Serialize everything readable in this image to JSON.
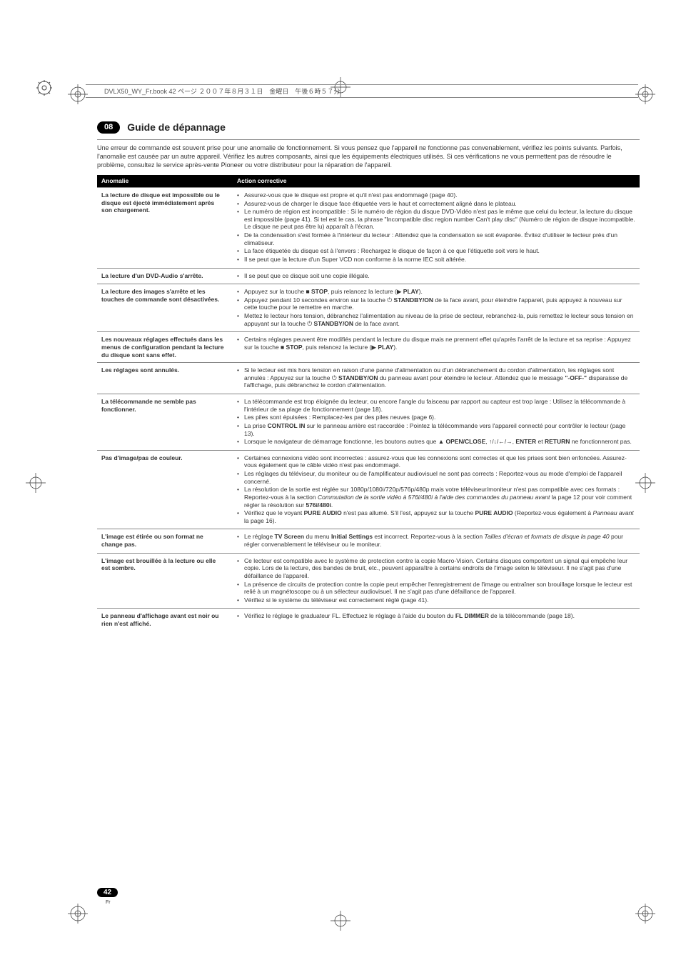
{
  "meta": {
    "header_strip": "DVLX50_WY_Fr.book  42 ページ  ２００７年８月３１日　金曜日　午後６時５７分"
  },
  "chapter": {
    "number": "08",
    "title": "Guide de dépannage"
  },
  "intro": "Une erreur de commande est souvent prise pour une anomalie de fonctionnement. Si vous pensez que l'appareil ne fonctionne pas convenablement, vérifiez les points suivants. Parfois, l'anomalie est causée par un autre appareil. Vérifiez les autres composants, ainsi que les équipements électriques utilisés. Si ces vérifications ne vous permettent pas de résoudre le problème, consultez le service après-vente Pioneer ou votre distributeur pour la réparation de l'appareil.",
  "table": {
    "head": {
      "anomalie": "Anomalie",
      "action": "Action corrective"
    },
    "rows": [
      {
        "anom": "La lecture de disque est impossible ou le disque est éjecté immédiatement après son chargement.",
        "items": [
          "Assurez-vous que le disque est propre et qu'il n'est pas endommagé (page 40).",
          "Assurez-vous de charger le disque face étiquetée vers le haut et correctement aligné dans le plateau.",
          "Le numéro de région est incompatible : Si le numéro de région du disque DVD-Vidéo n'est pas le même que celui du lecteur, la lecture du disque est impossible (page 41). Si tel est le cas, la phrase \"Incompatible disc region number Can't play disc\" (Numéro de région de disque incompatible. Le disque ne peut pas être lu) apparaît à l'écran.",
          "De la condensation s'est formée à l'intérieur du lecteur : Attendez que la condensation se soit évaporée. Évitez d'utiliser le lecteur près d'un climatiseur.",
          "La face étiquetée du disque est à l'envers : Rechargez le disque de façon à ce que l'étiquette soit vers le haut.",
          "Il se peut que la lecture d'un Super VCD non conforme à la norme IEC soit altérée."
        ]
      },
      {
        "anom": "La lecture d'un DVD-Audio s'arrête.",
        "items": [
          "Il se peut que ce disque soit une copie illégale."
        ]
      },
      {
        "anom": "La lecture des images s'arrête et les touches de commande sont désactivées.",
        "items": [
          "Appuyez sur la touche <span class='sym'>■</span> <span class='b'>STOP</span>, puis relancez la lecture (<span class='sym'>▶</span> <span class='b'>PLAY</span>).",
          "Appuyez pendant 10 secondes environ sur la touche <span class='sym'>⏻</span> <span class='b'>STANDBY/ON</span> de la face avant, pour éteindre l'appareil, puis appuyez à nouveau sur cette touche pour le remettre en marche.",
          "Mettez le lecteur hors tension, débranchez l'alimentation au niveau de la prise de secteur, rebranchez-la, puis remettez le lecteur sous tension en appuyant sur la touche <span class='sym'>⏻</span> <span class='b'>STANDBY/ON</span> de la face avant."
        ]
      },
      {
        "anom": "Les nouveaux réglages effectués dans les menus de configuration pendant la lecture du disque sont sans effet.",
        "items": [
          "Certains réglages peuvent être modifiés pendant la lecture du disque mais ne prennent effet qu'après l'arrêt de la lecture et sa reprise : Appuyez sur la touche <span class='sym'>■</span> <span class='b'>STOP</span>, puis relancez la lecture (<span class='sym'>▶</span> <span class='b'>PLAY</span>)."
        ]
      },
      {
        "anom": "Les réglages sont annulés.",
        "items": [
          "Si le lecteur est mis hors tension en raison d'une panne d'alimentation ou d'un débranchement du cordon d'alimentation, les réglages sont annulés : Appuyez sur la touche <span class='sym'>⏻</span> <span class='b'>STANDBY/ON</span> du panneau avant pour éteindre le lecteur. Attendez que le message <span class='b'>\"-OFF-\"</span> disparaisse de l'affichage, puis débranchez le cordon d'alimentation."
        ]
      },
      {
        "anom": "La télécommande ne semble pas fonctionner.",
        "items": [
          "La télécommande est trop éloignée du lecteur, ou encore l'angle du faisceau par rapport au capteur est trop large : Utilisez la télécommande à l'intérieur de sa plage de fonctionnement (page 18).",
          "Les piles sont épuisées : Remplacez-les par des piles neuves (page 6).",
          "La prise <span class='b'>CONTROL IN</span> sur le panneau arrière est raccordée : Pointez la télécommande vers l'appareil connecté pour contrôler le lecteur (page 13).",
          "Lorsque le navigateur de démarrage fonctionne, les boutons autres que <span class='sym'>▲</span> <span class='b'>OPEN/CLOSE</span>, <span class='sym'>↑</span>/<span class='sym'>↓</span>/<span class='sym'>←</span>/<span class='sym'>→</span>, <span class='b'>ENTER</span> et <span class='b'>RETURN</span> ne fonctionneront pas."
        ]
      },
      {
        "anom": "Pas d'image/pas de couleur.",
        "items": [
          "Certaines connexions vidéo sont incorrectes : assurez-vous que les connexions sont correctes et que les prises sont bien enfoncées. Assurez-vous également que le câble vidéo n'est pas endommagé.",
          "Les réglages du téléviseur, du moniteur ou de l'amplificateur audiovisuel ne sont pas corrects : Reportez-vous au mode d'emploi de l'appareil concerné.",
          "La résolution de la sortie est réglée sur 1080p/1080i/720p/576p/480p mais votre téléviseur/moniteur n'est pas compatible avec ces formats : Reportez-vous à la section <span class='it'>Commutation de la sortie vidéo à 576i/480i à l'aide des commandes du panneau avant</span> la page 12 pour voir comment régler la résolution sur <span class='b'>576i/480i</span>.",
          "Vérifiez que le voyant <span class='b'>PURE AUDIO</span> n'est pas allumé. S'il l'est, appuyez sur la touche <span class='b'>PURE AUDIO</span> (Reportez-vous également à <span class='it'>Panneau avant</span> la page 16)."
        ]
      },
      {
        "anom": "L'image est étirée ou son format ne change pas.",
        "items": [
          "Le réglage <span class='b'>TV Screen</span> du menu <span class='b'>Initial Settings</span> est incorrect. Reportez-vous à la section <span class='it'>Tailles d'écran et formats de disque la page 40</span> pour régler convenablement le téléviseur ou le moniteur."
        ]
      },
      {
        "anom": "L'image est brouillée à la lecture ou elle est sombre.",
        "items": [
          "Ce lecteur est compatible avec le système de protection contre la copie Macro-Vision. Certains disques comportent un signal qui empêche leur copie. Lors de la lecture, des bandes de bruit, etc., peuvent apparaître à certains endroits de l'image selon le téléviseur. Il ne s'agit pas d'une défaillance de l'appareil.",
          "La présence de circuits de protection contre la copie peut empêcher l'enregistrement de l'image ou entraîner son brouillage lorsque le lecteur est relié à un magnétoscope ou à un sélecteur audiovisuel. Il ne s'agit pas d'une défaillance de l'appareil.",
          "Vérifiez si le système du téléviseur est correctement réglé (page 41)."
        ]
      },
      {
        "anom": "Le panneau d'affichage avant est noir ou rien n'est affiché.",
        "items": [
          "Vérifiez le réglage le graduateur FL. Effectuez le réglage à l'aide du bouton du <span class='b'>FL DIMMER</span> de la télécommande (page 18)."
        ]
      }
    ]
  },
  "page_number": {
    "num": "42",
    "sub": "Fr"
  }
}
